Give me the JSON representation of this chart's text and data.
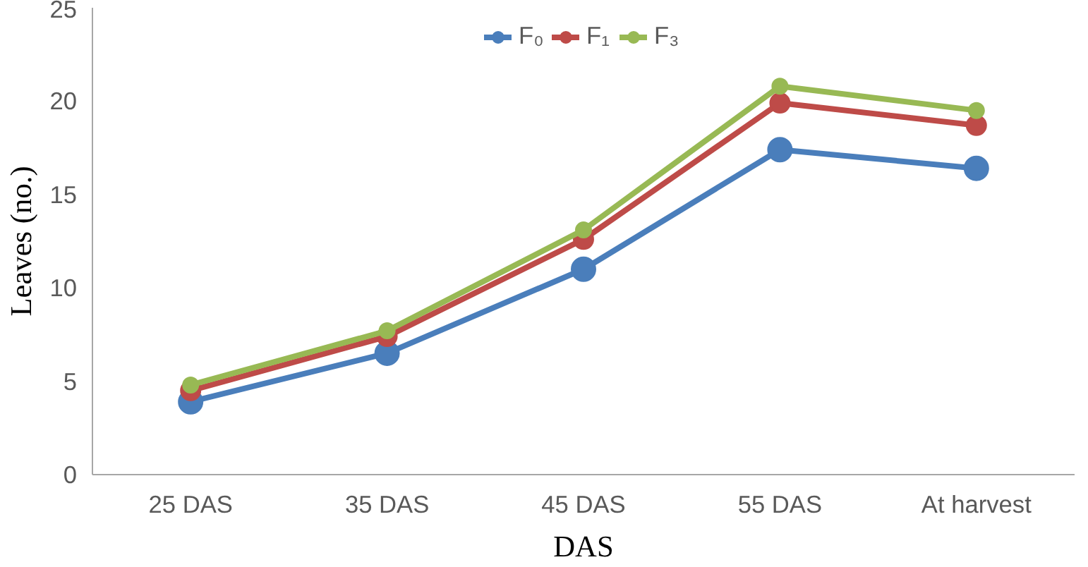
{
  "chart_data": {
    "type": "line",
    "xlabel": "DAS",
    "ylabel": "Leaves (no.)",
    "categories": [
      "25 DAS",
      "35 DAS",
      "45 DAS",
      "55 DAS",
      "At harvest"
    ],
    "series": [
      {
        "name": "F₀",
        "color": "#4a7ebb",
        "values": [
          3.9,
          6.5,
          11.0,
          17.4,
          16.4
        ]
      },
      {
        "name": "F₁",
        "color": "#be4b48",
        "values": [
          4.5,
          7.4,
          12.6,
          19.9,
          18.7
        ]
      },
      {
        "name": "F₃",
        "color": "#98b954",
        "values": [
          4.8,
          7.7,
          13.1,
          20.8,
          19.5
        ]
      }
    ],
    "ylim": [
      0,
      25
    ],
    "yticks": [
      0,
      5,
      10,
      15,
      20,
      25
    ],
    "grid": false,
    "legend": "top",
    "marker": "circle",
    "line_style": "solid"
  }
}
